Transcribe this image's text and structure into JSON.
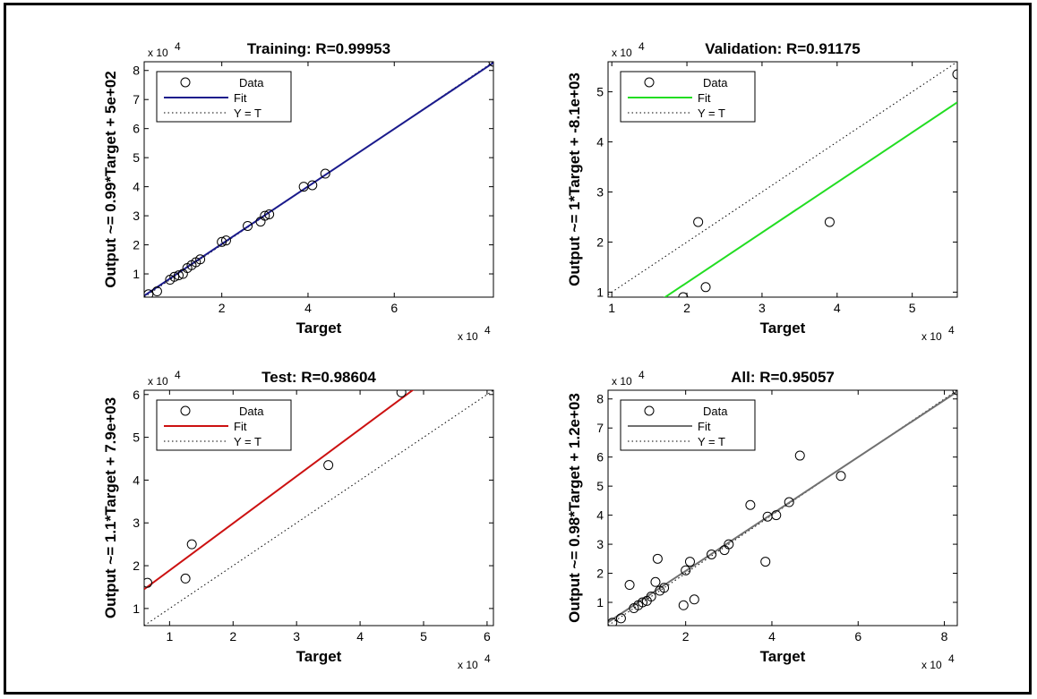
{
  "chart_data": [
    {
      "type": "scatter",
      "title": "Training: R=0.99953",
      "xlabel": "Target",
      "ylabel": "Output ~= 0.99*Target + 5e+02",
      "x_multiplier": "x 10",
      "x_exponent": "4",
      "y_multiplier": "x 10",
      "y_exponent": "4",
      "xlim": [
        0.2,
        8.3
      ],
      "ylim": [
        0.2,
        8.3
      ],
      "xticks": [
        2,
        4,
        6
      ],
      "yticks": [
        1,
        2,
        3,
        4,
        5,
        6,
        7,
        8
      ],
      "fit_color": "#1a1a8c",
      "fit": {
        "slope": 0.99,
        "intercept": 0.05
      },
      "legend": [
        "Data",
        "Fit",
        "Y = T"
      ],
      "legend_position": "top-left",
      "series": [
        {
          "name": "Data",
          "points": [
            [
              0.3,
              0.3
            ],
            [
              0.5,
              0.4
            ],
            [
              0.8,
              0.8
            ],
            [
              0.9,
              0.9
            ],
            [
              1.0,
              0.95
            ],
            [
              1.1,
              1.0
            ],
            [
              1.2,
              1.2
            ],
            [
              1.3,
              1.3
            ],
            [
              1.4,
              1.4
            ],
            [
              1.5,
              1.5
            ],
            [
              2.0,
              2.1
            ],
            [
              2.1,
              2.15
            ],
            [
              2.6,
              2.65
            ],
            [
              2.9,
              2.8
            ],
            [
              3.0,
              3.0
            ],
            [
              3.1,
              3.05
            ],
            [
              3.9,
              4.0
            ],
            [
              4.1,
              4.05
            ],
            [
              4.4,
              4.45
            ],
            [
              8.3,
              8.3
            ]
          ]
        }
      ]
    },
    {
      "type": "scatter",
      "title": "Validation: R=0.91175",
      "xlabel": "Target",
      "ylabel": "Output ~= 1*Target + -8.1e+03",
      "x_multiplier": "x 10",
      "x_exponent": "4",
      "y_multiplier": "x 10",
      "y_exponent": "4",
      "xlim": [
        0.95,
        5.6
      ],
      "ylim": [
        0.9,
        5.6
      ],
      "xticks": [
        1,
        2,
        3,
        4,
        5
      ],
      "yticks": [
        1,
        2,
        3,
        4,
        5
      ],
      "fit_color": "#22dd22",
      "fit": {
        "slope": 1.0,
        "intercept": -0.81
      },
      "legend": [
        "Data",
        "Fit",
        "Y = T"
      ],
      "legend_position": "top-left",
      "series": [
        {
          "name": "Data",
          "points": [
            [
              1.95,
              0.9
            ],
            [
              2.15,
              2.4
            ],
            [
              2.25,
              1.1
            ],
            [
              3.9,
              2.4
            ],
            [
              5.6,
              5.35
            ]
          ]
        }
      ]
    },
    {
      "type": "scatter",
      "title": "Test: R=0.98604",
      "xlabel": "Target",
      "ylabel": "Output ~= 1.1*Target + 7.9e+03",
      "x_multiplier": "x 10",
      "x_exponent": "4",
      "y_multiplier": "x 10",
      "y_exponent": "4",
      "xlim": [
        0.6,
        6.1
      ],
      "ylim": [
        0.6,
        6.1
      ],
      "xticks": [
        1,
        2,
        3,
        4,
        5,
        6
      ],
      "yticks": [
        1,
        2,
        3,
        4,
        5,
        6
      ],
      "fit_color": "#cc1111",
      "fit": {
        "slope": 1.1,
        "intercept": 0.79
      },
      "legend": [
        "Data",
        "Fit",
        "Y = T"
      ],
      "legend_position": "top-left",
      "series": [
        {
          "name": "Data",
          "points": [
            [
              0.65,
              1.6
            ],
            [
              1.25,
              1.7
            ],
            [
              1.35,
              2.5
            ],
            [
              3.5,
              4.35
            ],
            [
              4.65,
              6.05
            ]
          ]
        }
      ]
    },
    {
      "type": "scatter",
      "title": "All: R=0.95057",
      "xlabel": "Target",
      "ylabel": "Output ~= 0.98*Target + 1.2e+03",
      "x_multiplier": "x 10",
      "x_exponent": "4",
      "y_multiplier": "x 10",
      "y_exponent": "4",
      "xlim": [
        0.2,
        8.3
      ],
      "ylim": [
        0.2,
        8.3
      ],
      "xticks": [
        2,
        4,
        6,
        8
      ],
      "yticks": [
        1,
        2,
        3,
        4,
        5,
        6,
        7,
        8
      ],
      "fit_color": "#707070",
      "fit": {
        "slope": 0.98,
        "intercept": 0.12
      },
      "legend": [
        "Data",
        "Fit",
        "Y = T"
      ],
      "legend_position": "top-left",
      "series": [
        {
          "name": "Data",
          "points": [
            [
              0.3,
              0.3
            ],
            [
              0.5,
              0.45
            ],
            [
              0.7,
              1.6
            ],
            [
              0.8,
              0.8
            ],
            [
              0.9,
              0.9
            ],
            [
              1.0,
              1.0
            ],
            [
              1.1,
              1.05
            ],
            [
              1.2,
              1.2
            ],
            [
              1.3,
              1.7
            ],
            [
              1.35,
              2.5
            ],
            [
              1.4,
              1.4
            ],
            [
              1.5,
              1.5
            ],
            [
              1.95,
              0.9
            ],
            [
              2.0,
              2.1
            ],
            [
              2.1,
              2.4
            ],
            [
              2.2,
              1.1
            ],
            [
              2.6,
              2.65
            ],
            [
              2.9,
              2.8
            ],
            [
              3.0,
              3.0
            ],
            [
              3.5,
              4.35
            ],
            [
              3.85,
              2.4
            ],
            [
              3.9,
              3.95
            ],
            [
              4.1,
              4.0
            ],
            [
              4.4,
              4.45
            ],
            [
              4.65,
              6.05
            ],
            [
              5.6,
              5.35
            ],
            [
              8.3,
              8.3
            ]
          ]
        }
      ]
    }
  ]
}
